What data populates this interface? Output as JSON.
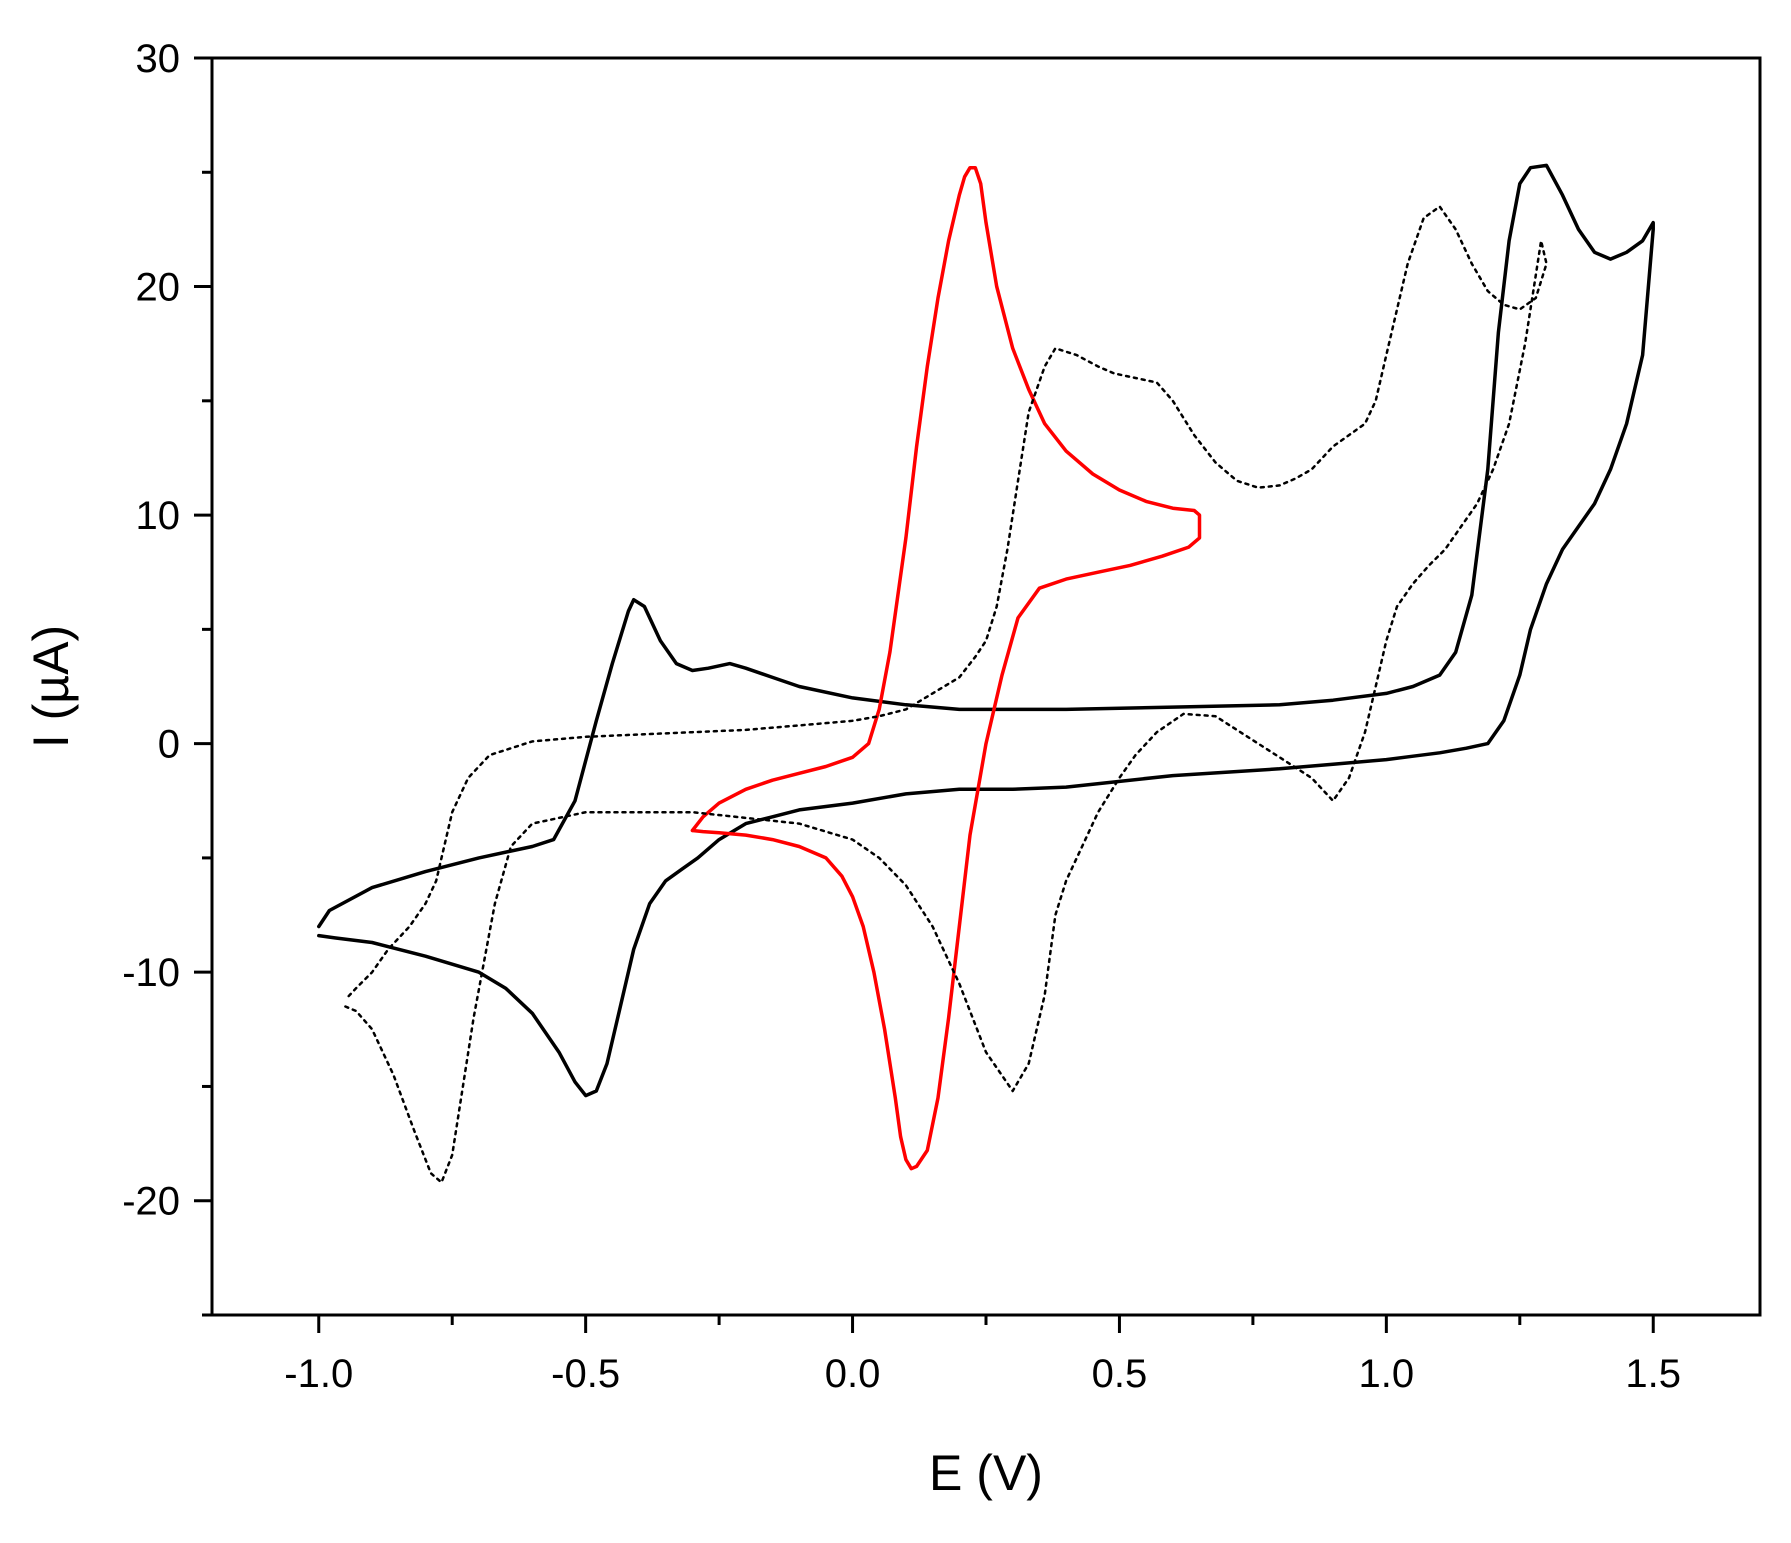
{
  "chart_data": {
    "type": "line",
    "title": "",
    "xlabel": "E (V)",
    "ylabel": "I (µA)",
    "xlim": [
      -1.2,
      1.7
    ],
    "ylim": [
      -25,
      30
    ],
    "x_ticks": [
      -1.0,
      -0.5,
      0.0,
      0.5,
      1.0,
      1.5
    ],
    "x_tick_labels": [
      "-1.0",
      "-0.5",
      "0.0",
      "0.5",
      "1.0",
      "1.5"
    ],
    "x_minor_ticks": [
      -0.75,
      -0.25,
      0.25,
      0.75,
      1.25
    ],
    "y_ticks": [
      -20,
      -10,
      0,
      10,
      20,
      30
    ],
    "y_tick_labels": [
      "-20",
      "-10",
      "0",
      "10",
      "20",
      "30"
    ],
    "y_minor_ticks": [
      -25,
      -15,
      -5,
      5,
      15,
      25
    ],
    "grid": false,
    "legend": "none",
    "series": [
      {
        "color": "#000000",
        "dash": "solid",
        "x": [
          -1.0,
          -0.98,
          -0.9,
          -0.8,
          -0.7,
          -0.6,
          -0.56,
          -0.52,
          -0.48,
          -0.45,
          -0.42,
          -0.41,
          -0.39,
          -0.36,
          -0.33,
          -0.3,
          -0.27,
          -0.23,
          -0.2,
          -0.15,
          -0.1,
          0.0,
          0.1,
          0.2,
          0.4,
          0.6,
          0.8,
          0.9,
          1.0,
          1.05,
          1.1,
          1.13,
          1.16,
          1.19,
          1.21,
          1.23,
          1.25,
          1.27,
          1.3,
          1.33,
          1.36,
          1.39,
          1.42,
          1.45,
          1.48,
          1.5,
          1.5,
          1.48,
          1.45,
          1.42,
          1.39,
          1.36,
          1.33,
          1.3,
          1.27,
          1.25,
          1.22,
          1.19,
          1.15,
          1.1,
          1.05,
          1.0,
          0.9,
          0.8,
          0.6,
          0.4,
          0.3,
          0.2,
          0.1,
          0.0,
          -0.1,
          -0.15,
          -0.2,
          -0.25,
          -0.29,
          -0.32,
          -0.35,
          -0.38,
          -0.41,
          -0.44,
          -0.46,
          -0.48,
          -0.5,
          -0.52,
          -0.55,
          -0.6,
          -0.65,
          -0.7,
          -0.8,
          -0.9,
          -0.97,
          -1.0
        ],
        "y": [
          -8.0,
          -7.3,
          -6.3,
          -5.6,
          -5.0,
          -4.5,
          -4.2,
          -2.5,
          1.0,
          3.5,
          5.8,
          6.3,
          6.0,
          4.5,
          3.5,
          3.2,
          3.3,
          3.5,
          3.3,
          2.9,
          2.5,
          2.0,
          1.7,
          1.5,
          1.5,
          1.6,
          1.7,
          1.9,
          2.2,
          2.5,
          3.0,
          4.0,
          6.5,
          12.0,
          18.0,
          22.0,
          24.5,
          25.2,
          25.3,
          24.0,
          22.5,
          21.5,
          21.2,
          21.5,
          22.0,
          22.8,
          22.5,
          17.0,
          14.0,
          12.0,
          10.5,
          9.5,
          8.5,
          7.0,
          5.0,
          3.0,
          1.0,
          0.0,
          -0.2,
          -0.4,
          -0.55,
          -0.7,
          -0.9,
          -1.1,
          -1.4,
          -1.9,
          -2.0,
          -2.0,
          -2.2,
          -2.6,
          -2.9,
          -3.2,
          -3.5,
          -4.2,
          -5.0,
          -5.5,
          -6.0,
          -7.0,
          -9.0,
          -12.0,
          -14.0,
          -15.2,
          -15.4,
          -14.8,
          -13.5,
          -11.8,
          -10.7,
          -10.0,
          -9.3,
          -8.7,
          -8.5,
          -8.4
        ]
      },
      {
        "color": "#ff0000",
        "dash": "solid",
        "x": [
          -0.3,
          -0.28,
          -0.25,
          -0.2,
          -0.15,
          -0.1,
          -0.05,
          0.0,
          0.03,
          0.05,
          0.07,
          0.1,
          0.12,
          0.14,
          0.16,
          0.18,
          0.2,
          0.21,
          0.22,
          0.23,
          0.24,
          0.25,
          0.27,
          0.3,
          0.33,
          0.36,
          0.4,
          0.45,
          0.5,
          0.55,
          0.6,
          0.64,
          0.65,
          0.65,
          0.63,
          0.58,
          0.52,
          0.46,
          0.4,
          0.35,
          0.31,
          0.28,
          0.25,
          0.22,
          0.2,
          0.18,
          0.16,
          0.14,
          0.12,
          0.11,
          0.1,
          0.09,
          0.08,
          0.06,
          0.04,
          0.02,
          0.0,
          -0.02,
          -0.05,
          -0.1,
          -0.15,
          -0.2,
          -0.25,
          -0.28,
          -0.3
        ],
        "y": [
          -3.8,
          -3.2,
          -2.6,
          -2.0,
          -1.6,
          -1.3,
          -1.0,
          -0.6,
          0.0,
          1.5,
          4.0,
          9.0,
          13.0,
          16.5,
          19.5,
          22.0,
          24.0,
          24.8,
          25.2,
          25.2,
          24.5,
          22.8,
          20.0,
          17.3,
          15.5,
          14.0,
          12.8,
          11.8,
          11.1,
          10.6,
          10.3,
          10.2,
          10.0,
          9.0,
          8.6,
          8.2,
          7.8,
          7.5,
          7.2,
          6.8,
          5.5,
          3.0,
          0.0,
          -4.0,
          -8.0,
          -12.0,
          -15.5,
          -17.8,
          -18.5,
          -18.6,
          -18.2,
          -17.2,
          -15.5,
          -12.5,
          -10.0,
          -8.0,
          -6.7,
          -5.8,
          -5.0,
          -4.5,
          -4.2,
          -4.0,
          -3.9,
          -3.85,
          -3.8
        ]
      },
      {
        "color": "#000000",
        "dash": "dotted",
        "x": [
          -0.95,
          -0.93,
          -0.9,
          -0.86,
          -0.82,
          -0.79,
          -0.77,
          -0.75,
          -0.73,
          -0.71,
          -0.69,
          -0.67,
          -0.64,
          -0.6,
          -0.5,
          -0.3,
          -0.1,
          0.0,
          0.05,
          0.1,
          0.15,
          0.2,
          0.25,
          0.3,
          0.33,
          0.36,
          0.38,
          0.4,
          0.43,
          0.46,
          0.5,
          0.53,
          0.57,
          0.62,
          0.68,
          0.74,
          0.8,
          0.86,
          0.9,
          0.93,
          0.96,
          0.98,
          1.0,
          1.02,
          1.05,
          1.08,
          1.11,
          1.14,
          1.17,
          1.2,
          1.23,
          1.26,
          1.28,
          1.29,
          1.3,
          1.28,
          1.25,
          1.22,
          1.19,
          1.16,
          1.13,
          1.1,
          1.07,
          1.04,
          1.02,
          1.0,
          0.98,
          0.96,
          0.93,
          0.9,
          0.88,
          0.86,
          0.83,
          0.8,
          0.76,
          0.72,
          0.68,
          0.64,
          0.6,
          0.57,
          0.53,
          0.49,
          0.46,
          0.42,
          0.38,
          0.36,
          0.33,
          0.31,
          0.29,
          0.27,
          0.25,
          0.23,
          0.2,
          0.15,
          0.1,
          0.05,
          0.0,
          -0.1,
          -0.2,
          -0.3,
          -0.4,
          -0.5,
          -0.6,
          -0.68,
          -0.72,
          -0.75,
          -0.77,
          -0.78,
          -0.8,
          -0.83,
          -0.87,
          -0.9,
          -0.93,
          -0.95
        ],
        "y": [
          -11.5,
          -11.7,
          -12.5,
          -14.5,
          -17.0,
          -18.8,
          -19.2,
          -18.0,
          -15.0,
          -12.0,
          -9.5,
          -7.0,
          -4.5,
          -3.5,
          -3.0,
          -3.0,
          -3.5,
          -4.2,
          -5.0,
          -6.2,
          -8.0,
          -10.5,
          -13.5,
          -15.2,
          -14.0,
          -11.0,
          -7.5,
          -6.0,
          -4.5,
          -3.0,
          -1.5,
          -0.5,
          0.5,
          1.3,
          1.2,
          0.3,
          -0.6,
          -1.5,
          -2.5,
          -1.5,
          0.5,
          2.5,
          4.5,
          6.0,
          7.0,
          7.8,
          8.5,
          9.5,
          10.5,
          12.0,
          14.0,
          17.5,
          20.5,
          22.0,
          21.0,
          19.5,
          19.0,
          19.2,
          19.8,
          21.0,
          22.5,
          23.5,
          23.0,
          21.0,
          19.0,
          17.0,
          15.0,
          14.0,
          13.5,
          13.0,
          12.5,
          12.0,
          11.6,
          11.3,
          11.2,
          11.5,
          12.3,
          13.5,
          15.0,
          15.8,
          16.0,
          16.2,
          16.5,
          17.0,
          17.3,
          16.5,
          14.5,
          11.5,
          8.5,
          6.0,
          4.5,
          3.8,
          2.9,
          2.2,
          1.5,
          1.2,
          1.0,
          0.8,
          0.6,
          0.5,
          0.4,
          0.3,
          0.1,
          -0.5,
          -1.5,
          -3.0,
          -5.0,
          -6.0,
          -7.0,
          -8.0,
          -9.0,
          -10.0,
          -10.7,
          -11.2
        ]
      }
    ]
  }
}
